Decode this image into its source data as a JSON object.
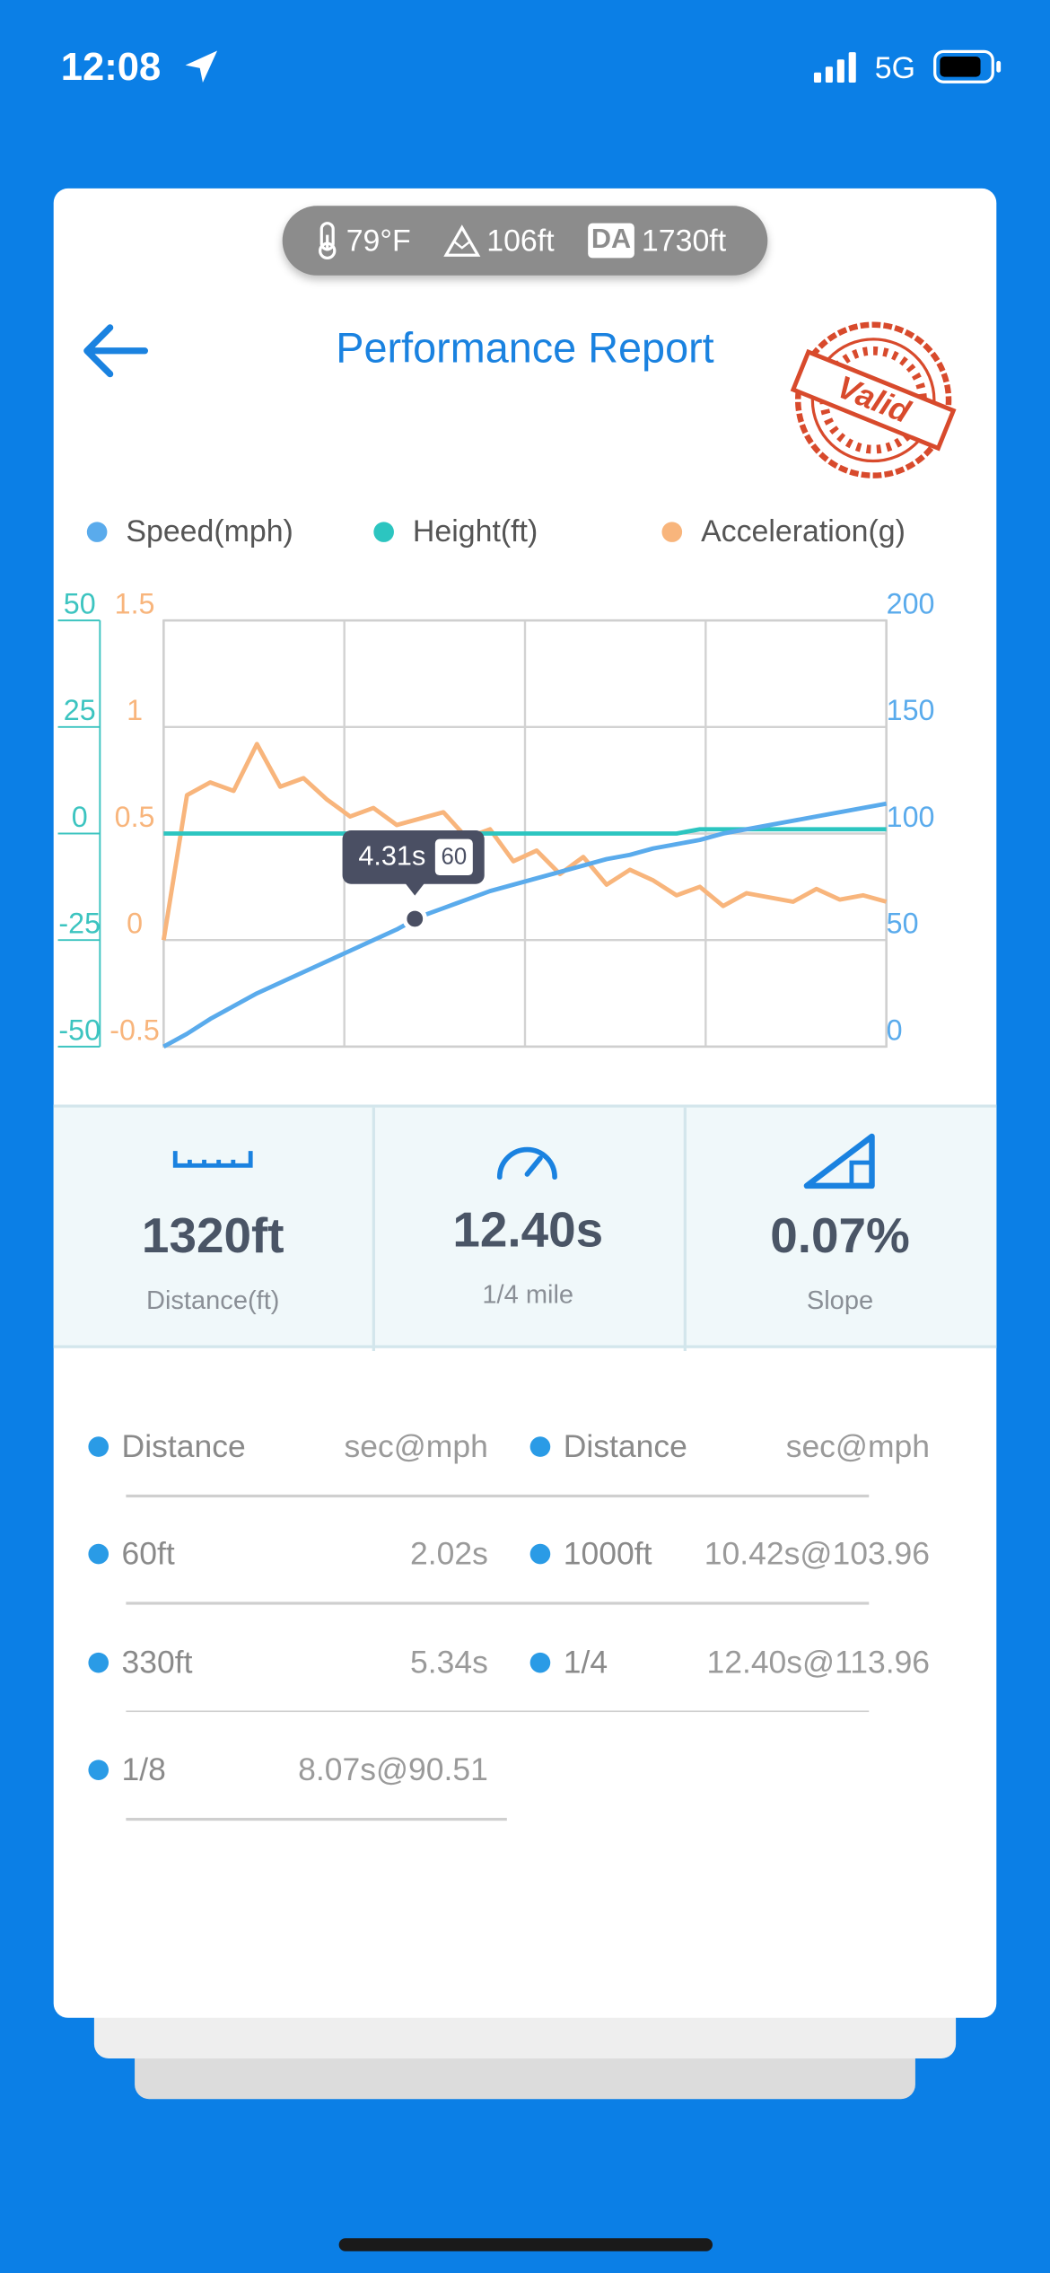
{
  "status_bar": {
    "time": "12:08",
    "network": "5G"
  },
  "conditions": {
    "temperature": "79°F",
    "altitude": "106ft",
    "density_altitude_label": "DA",
    "density_altitude": "1730ft"
  },
  "header": {
    "title": "Performance Report",
    "stamp": "Valid"
  },
  "chart_data": {
    "type": "line",
    "x": [
      0,
      0.4,
      0.8,
      1.2,
      1.6,
      2.0,
      2.4,
      2.8,
      3.2,
      3.6,
      4.0,
      4.4,
      4.8,
      5.2,
      5.6,
      6.0,
      6.4,
      6.8,
      7.2,
      7.6,
      8.0,
      8.4,
      8.8,
      9.2,
      9.6,
      10.0,
      10.4,
      10.8,
      11.2,
      11.6,
      12.0,
      12.4
    ],
    "xlim": [
      0,
      12.4
    ],
    "series": [
      {
        "name": "Speed(mph)",
        "color": "#5aabec",
        "axis": "y2",
        "values": [
          0,
          6,
          13,
          19,
          25,
          30,
          35,
          40,
          45,
          50,
          55,
          61,
          65,
          69,
          73,
          76,
          79,
          82,
          85,
          88,
          90,
          93,
          95,
          97,
          100,
          102,
          104,
          106,
          108,
          110,
          112,
          114
        ]
      },
      {
        "name": "Height(ft)",
        "color": "#2cc5c0",
        "axis": "y",
        "values": [
          0,
          0,
          0,
          0,
          0,
          0,
          0,
          0,
          0,
          0,
          0,
          0,
          0,
          0,
          0,
          0,
          0,
          0,
          0,
          0,
          0,
          0,
          0,
          1,
          1,
          1,
          1,
          1,
          1,
          1,
          1,
          1
        ]
      },
      {
        "name": "Acceleration(g)",
        "color": "#f8b57c",
        "axis": "y3",
        "values": [
          0,
          0.68,
          0.74,
          0.7,
          0.92,
          0.72,
          0.76,
          0.66,
          0.58,
          0.62,
          0.54,
          0.57,
          0.6,
          0.48,
          0.52,
          0.37,
          0.42,
          0.31,
          0.39,
          0.26,
          0.33,
          0.28,
          0.21,
          0.25,
          0.16,
          0.22,
          0.2,
          0.18,
          0.24,
          0.19,
          0.21,
          0.18
        ]
      }
    ],
    "ylim": [
      -50,
      50
    ],
    "yticks": [
      -50,
      -25,
      0,
      25,
      50
    ],
    "y2lim": [
      0,
      200
    ],
    "y2ticks": [
      0,
      50,
      100,
      150,
      200
    ],
    "y3lim": [
      -0.5,
      1.5
    ],
    "y3ticks": [
      -0.5,
      0,
      0.5,
      1,
      1.5
    ],
    "grid": true,
    "tooltip": {
      "x": 4.31,
      "x_label": "4.31s",
      "value": 60
    }
  },
  "stats": [
    {
      "value": "1320ft",
      "label": "Distance(ft)"
    },
    {
      "value": "12.40s",
      "label": "1/4 mile"
    },
    {
      "value": "0.07%",
      "label": "Slope"
    }
  ],
  "splits": {
    "headers": [
      "Distance",
      "sec@mph",
      "Distance",
      "sec@mph"
    ],
    "rows": [
      [
        "60ft",
        "2.02s",
        "1000ft",
        "10.42s@103.96"
      ],
      [
        "330ft",
        "5.34s",
        "1/4",
        "12.40s@113.96"
      ],
      [
        "1/8",
        "8.07s@90.51"
      ]
    ]
  }
}
